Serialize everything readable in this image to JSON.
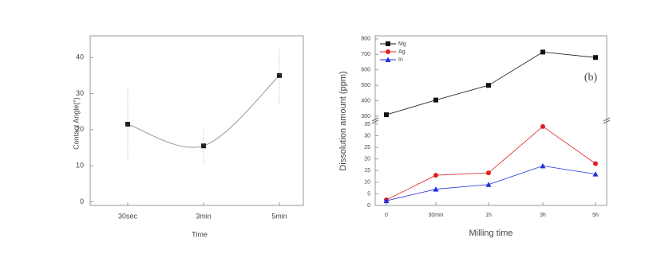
{
  "chart_data": [
    {
      "type": "line",
      "ylabel": "Contact Angle(°)",
      "xlabel": "Time",
      "categories": [
        "30sec",
        "3min",
        "5min"
      ],
      "values": [
        21.5,
        15.5,
        35
      ],
      "errors": [
        10,
        5,
        8
      ],
      "color": "#222222",
      "ylim": [
        -1,
        46
      ],
      "yticks": [
        0,
        10,
        20,
        30,
        40
      ]
    },
    {
      "type": "broken-line",
      "ylabel": "Dissolution amount (ppm)",
      "xlabel": "Milling time",
      "annotation": "(b)",
      "categories": [
        "0",
        "30min",
        "1h",
        "3h",
        "5h"
      ],
      "ylim": [
        0,
        36
      ],
      "yticks": [
        0,
        5,
        10,
        15,
        20,
        25,
        30,
        35
      ],
      "y2lim": [
        290,
        820
      ],
      "y2ticks": [
        300,
        400,
        500,
        600,
        700,
        800
      ],
      "legend": "upper left",
      "series": [
        {
          "name": "Mg",
          "color": "#111111",
          "marker": "square",
          "axis": "y2",
          "values": [
            310,
            405,
            500,
            715,
            680
          ]
        },
        {
          "name": "Ag",
          "color": "#e02020",
          "marker": "circle",
          "values": [
            2.4,
            13,
            14,
            34,
            18
          ]
        },
        {
          "name": "In",
          "color": "#2030e0",
          "marker": "triangle",
          "values": [
            2,
            7,
            9,
            17,
            13.5
          ]
        }
      ]
    }
  ]
}
